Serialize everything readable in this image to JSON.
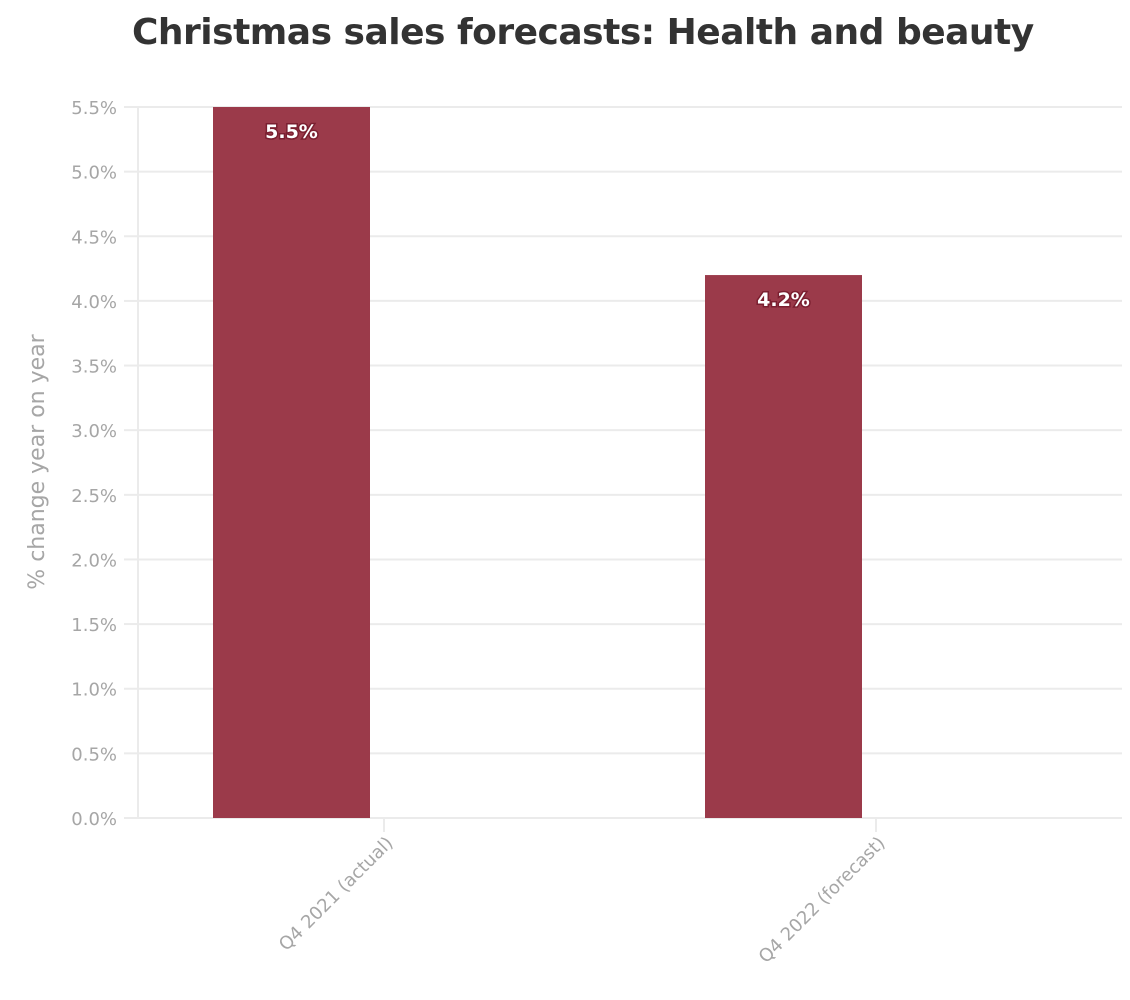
{
  "chart_data": {
    "type": "bar",
    "title": "Christmas sales forecasts: Health and beauty",
    "xlabel": "",
    "ylabel": "% change year on year",
    "categories": [
      "Q4 2021 (actual)",
      "Q4 2022 (forecast)"
    ],
    "values": [
      5.5,
      4.2
    ],
    "data_labels": [
      "5.5%",
      "4.2%"
    ],
    "ylim": [
      0,
      5.5
    ],
    "yticks": [
      0,
      0.5,
      1.0,
      1.5,
      2.0,
      2.5,
      3.0,
      3.5,
      4.0,
      4.5,
      5.0,
      5.5
    ],
    "ytick_labels": [
      "0.0%",
      "0.5%",
      "1.0%",
      "1.5%",
      "2.0%",
      "2.5%",
      "3.0%",
      "3.5%",
      "4.0%",
      "4.5%",
      "5.0%",
      "5.5%"
    ],
    "grid": true,
    "legend": "none",
    "colors": {
      "bar": "#9b3a4a",
      "grid": "#ebebeb",
      "axis_text": "#a6a6a6",
      "title": "#333333"
    }
  }
}
